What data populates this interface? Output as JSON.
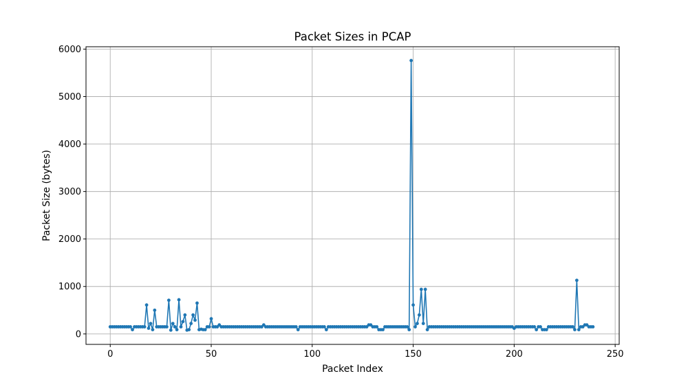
{
  "chart_data": {
    "type": "line",
    "title": "Packet Sizes in PCAP",
    "xlabel": "Packet Index",
    "ylabel": "Packet Size (bytes)",
    "xlim": [
      -12,
      252
    ],
    "ylim": [
      -220,
      6050
    ],
    "xticks": [
      0,
      50,
      100,
      150,
      200,
      250
    ],
    "yticks": [
      0,
      1000,
      2000,
      3000,
      4000,
      5000,
      6000
    ],
    "grid": true,
    "marker": "circle",
    "color": "#1f77b4",
    "series": [
      {
        "values": [
          150,
          150,
          150,
          150,
          150,
          150,
          150,
          150,
          150,
          150,
          150,
          90,
          150,
          150,
          150,
          150,
          150,
          150,
          610,
          120,
          220,
          90,
          500,
          150,
          150,
          150,
          150,
          150,
          150,
          710,
          80,
          220,
          150,
          90,
          720,
          150,
          260,
          400,
          80,
          90,
          220,
          400,
          290,
          650,
          90,
          100,
          90,
          90,
          150,
          150,
          320,
          150,
          150,
          150,
          190,
          150,
          150,
          150,
          150,
          150,
          150,
          150,
          150,
          150,
          150,
          150,
          150,
          150,
          150,
          150,
          150,
          150,
          150,
          150,
          150,
          150,
          190,
          150,
          150,
          150,
          150,
          150,
          150,
          150,
          150,
          150,
          150,
          150,
          150,
          150,
          150,
          150,
          150,
          90,
          150,
          150,
          150,
          150,
          150,
          150,
          150,
          150,
          150,
          150,
          150,
          150,
          150,
          90,
          150,
          150,
          150,
          150,
          150,
          150,
          150,
          150,
          150,
          150,
          150,
          150,
          150,
          150,
          150,
          150,
          150,
          150,
          150,
          150,
          190,
          190,
          150,
          150,
          150,
          90,
          90,
          90,
          150,
          150,
          150,
          150,
          150,
          150,
          150,
          150,
          150,
          150,
          150,
          150,
          90,
          5760,
          610,
          150,
          220,
          400,
          940,
          220,
          940,
          90,
          150,
          150,
          150,
          150,
          150,
          150,
          150,
          150,
          150,
          150,
          150,
          150,
          150,
          150,
          150,
          150,
          150,
          150,
          150,
          150,
          150,
          150,
          150,
          150,
          150,
          150,
          150,
          150,
          150,
          150,
          150,
          150,
          150,
          150,
          150,
          150,
          150,
          150,
          150,
          150,
          150,
          150,
          120,
          150,
          150,
          150,
          150,
          150,
          150,
          150,
          150,
          150,
          150,
          90,
          150,
          150,
          90,
          90,
          90,
          150,
          150,
          150,
          150,
          150,
          150,
          150,
          150,
          150,
          150,
          150,
          150,
          150,
          90,
          1130,
          90,
          150,
          150,
          190,
          190,
          150,
          150,
          150
        ]
      }
    ]
  }
}
